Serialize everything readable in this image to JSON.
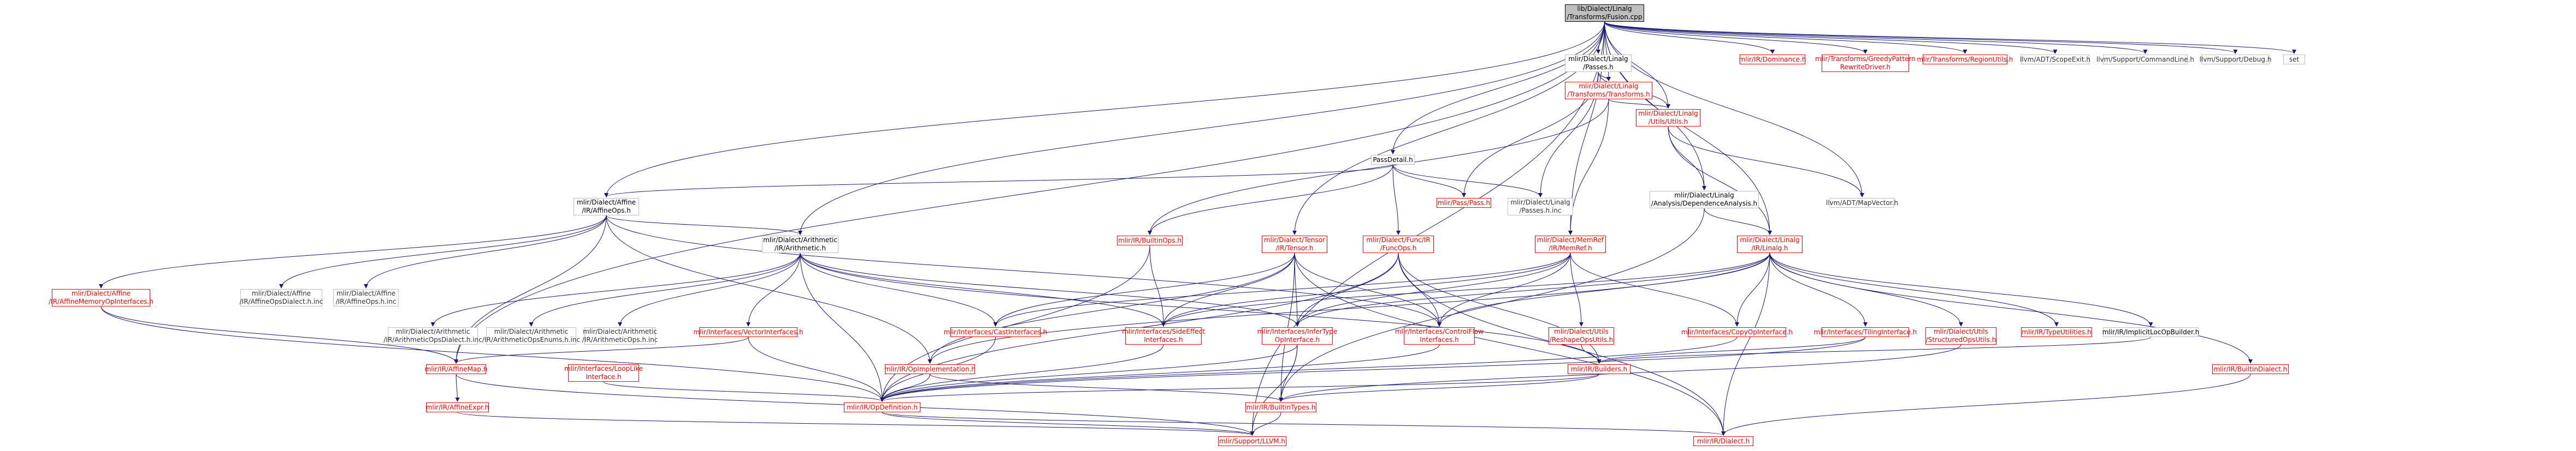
{
  "nodes": {
    "root": [
      "lib/Dialect/Linalg",
      "/Transforms/Fusion.cpp"
    ],
    "passes_h": [
      "mlir/Dialect/Linalg",
      "/Passes.h"
    ],
    "transforms_h": [
      "mlir/Dialect/Linalg",
      "/Transforms/Transforms.h"
    ],
    "utils_h": [
      "mlir/Dialect/Linalg",
      "/Utils/Utils.h"
    ],
    "passdetail_h": [
      "PassDetail.h"
    ],
    "affineops_h": [
      "mlir/Dialect/Affine",
      "/IR/AffineOps.h"
    ],
    "arith_h": [
      "mlir/Dialect/Arithmetic",
      "/IR/Arithmetic.h"
    ],
    "tensor_h": [
      "mlir/Dialect/Tensor",
      "/IR/Tensor.h"
    ],
    "funcops_h": [
      "mlir/Dialect/Func/IR",
      "/FuncOps.h"
    ],
    "memref_h": [
      "mlir/Dialect/MemRef",
      "/IR/MemRef.h"
    ],
    "linalg_h": [
      "mlir/Dialect/Linalg",
      "/IR/Linalg.h"
    ],
    "depanalysis_h": [
      "mlir/Dialect/Linalg",
      "/Analysis/DependenceAnalysis.h"
    ],
    "builtinops_h": [
      "mlir/IR/BuiltinOps.h"
    ],
    "passpass_h": [
      "mlir/Pass/Pass.h"
    ],
    "linalg_passes_inc": [
      "mlir/Dialect/Linalg",
      "/Passes.h.inc"
    ],
    "mapvector_h": [
      "llvm/ADT/MapVector.h"
    ],
    "dominance_h": [
      "mlir/IR/Dominance.h"
    ],
    "greedy_h": [
      "mlir/Transforms/GreedyPattern",
      "RewriteDriver.h"
    ],
    "regionutils_h": [
      "mlir/Transforms/RegionUtils.h"
    ],
    "scopeexit_h": [
      "llvm/ADT/ScopeExit.h"
    ],
    "commandline_h": [
      "llvm/Support/CommandLine.h"
    ],
    "debug_h": [
      "llvm/Support/Debug.h"
    ],
    "set": [
      "set"
    ],
    "affinememiface_h": [
      "mlir/Dialect/Affine",
      "/IR/AffineMemoryOpInterfaces.h"
    ],
    "affineopsdialect_inc": [
      "mlir/Dialect/Affine",
      "/IR/AffineOpsDialect.h.inc"
    ],
    "affineops_inc": [
      "mlir/Dialect/Affine",
      "/IR/AffineOps.h.inc"
    ],
    "arithdialect_inc": [
      "mlir/Dialect/Arithmetic",
      "/IR/ArithmeticOpsDialect.h.inc"
    ],
    "arithenums_inc": [
      "mlir/Dialect/Arithmetic",
      "/IR/ArithmeticOpsEnums.h.inc"
    ],
    "arithops_inc": [
      "mlir/Dialect/Arithmetic",
      "/IR/ArithmeticOps.h.inc"
    ],
    "vectoriface_h": [
      "mlir/Interfaces/VectorInterfaces.h"
    ],
    "castiface_h": [
      "mlir/Interfaces/CastInterfaces.h"
    ],
    "sideeffect_h": [
      "mlir/Interfaces/SideEffect",
      "Interfaces.h"
    ],
    "infertype_h": [
      "mlir/Interfaces/InferType",
      "OpInterface.h"
    ],
    "controlflow_h": [
      "mlir/Interfaces/ControlFlow",
      "Interfaces.h"
    ],
    "reshapeutils_h": [
      "mlir/Dialect/Utils",
      "/ReshapeOpsUtils.h"
    ],
    "copyop_h": [
      "mlir/Interfaces/CopyOpInterface.h"
    ],
    "tiling_h": [
      "mlir/Interfaces/TilingInterface.h"
    ],
    "structuredutils_h": [
      "mlir/Dialect/Utils",
      "/StructuredOpsUtils.h"
    ],
    "typeutils_h": [
      "mlir/IR/TypeUtilities.h"
    ],
    "implicitloc_h": [
      "mlir/IR/ImplicitLocOpBuilder.h"
    ],
    "builtindialect_h": [
      "mlir/IR/BuiltinDialect.h"
    ],
    "loopiface_h": [
      "mlir/Interfaces/LoopLike",
      "Interface.h"
    ],
    "affinemap_h": [
      "mlir/IR/AffineMap.h"
    ],
    "opimpl_h": [
      "mlir/IR/OpImplementation.h"
    ],
    "builders_h": [
      "mlir/IR/Builders.h"
    ],
    "affineexpr_h": [
      "mlir/IR/AffineExpr.h"
    ],
    "opdef_h": [
      "mlir/IR/OpDefinition.h"
    ],
    "builtintypes_h": [
      "mlir/IR/BuiltinTypes.h"
    ],
    "llvm_h": [
      "mlir/Support/LLVM.h"
    ],
    "dialect_h": [
      "mlir/IR/Dialect.h"
    ]
  },
  "colors": {
    "root_fill": "#bfbfbf",
    "link_border": "#ff0000",
    "edge": "#191970",
    "plain_border": "#bfbfbf"
  }
}
